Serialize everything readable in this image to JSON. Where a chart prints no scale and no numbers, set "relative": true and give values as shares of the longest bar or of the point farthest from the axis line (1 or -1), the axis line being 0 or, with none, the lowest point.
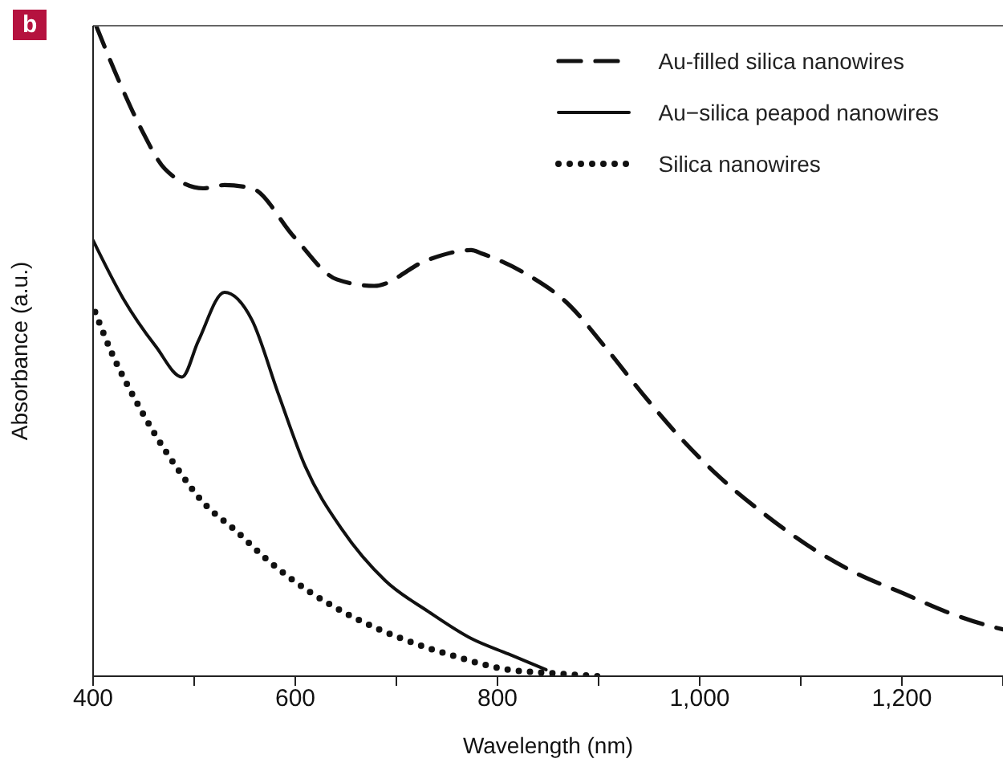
{
  "chart_data": {
    "type": "line",
    "relative": true,
    "xlabel": "Wavelength (nm)",
    "ylabel": "Absorbance (a.u.)",
    "annotations": [
      "b"
    ],
    "xlim": [
      400,
      1300
    ],
    "xticks": [
      400,
      {
        "value": 500,
        "label": null
      },
      600,
      {
        "value": 700,
        "label": null
      },
      800,
      {
        "value": 900,
        "label": null
      },
      {
        "value": 1000,
        "label": "1,000"
      },
      {
        "value": 1100,
        "label": null
      },
      {
        "value": 1200,
        "label": "1,200"
      },
      {
        "value": 1300,
        "label": null
      }
    ],
    "legend": "top right",
    "grid": false,
    "marker": "none",
    "series": [
      {
        "name": "Au-filled silica nanowires",
        "color": "#111111",
        "line_style": "dashed",
        "x": [
          403,
          427,
          448,
          471,
          509,
          530,
          557,
          599,
          641,
          678,
          731,
          774,
          784,
          832,
          868,
          906,
          943,
          979,
          1017,
          1065,
          1106,
          1154,
          1202,
          1244,
          1292,
          1300
        ],
        "values": [
          1.0,
          0.91,
          0.84,
          0.78,
          0.75,
          0.755,
          0.75,
          0.675,
          0.61,
          0.6,
          0.64,
          0.655,
          0.65,
          0.615,
          0.575,
          0.507,
          0.435,
          0.37,
          0.31,
          0.248,
          0.202,
          0.159,
          0.127,
          0.099,
          0.075,
          0.072
        ]
      },
      {
        "name": "Au−silica peapod nanowires",
        "color": "#111111",
        "line_style": "solid",
        "x": [
          400,
          430,
          462,
          488,
          504,
          530,
          557,
          583,
          610,
          646,
          689,
          732,
          774,
          811,
          848
        ],
        "values": [
          0.67,
          0.58,
          0.507,
          0.46,
          0.515,
          0.59,
          0.548,
          0.435,
          0.322,
          0.226,
          0.147,
          0.099,
          0.058,
          0.034,
          0.01
        ]
      },
      {
        "name": "Silica nanowires",
        "color": "#111111",
        "line_style": "dotted",
        "x": [
          402,
          419,
          440,
          462,
          483,
          509,
          541,
          573,
          614,
          657,
          705,
          757,
          811,
          850,
          900
        ],
        "values": [
          0.56,
          0.495,
          0.43,
          0.37,
          0.32,
          0.267,
          0.224,
          0.178,
          0.13,
          0.091,
          0.058,
          0.031,
          0.01,
          0.005,
          0.0
        ]
      }
    ]
  }
}
